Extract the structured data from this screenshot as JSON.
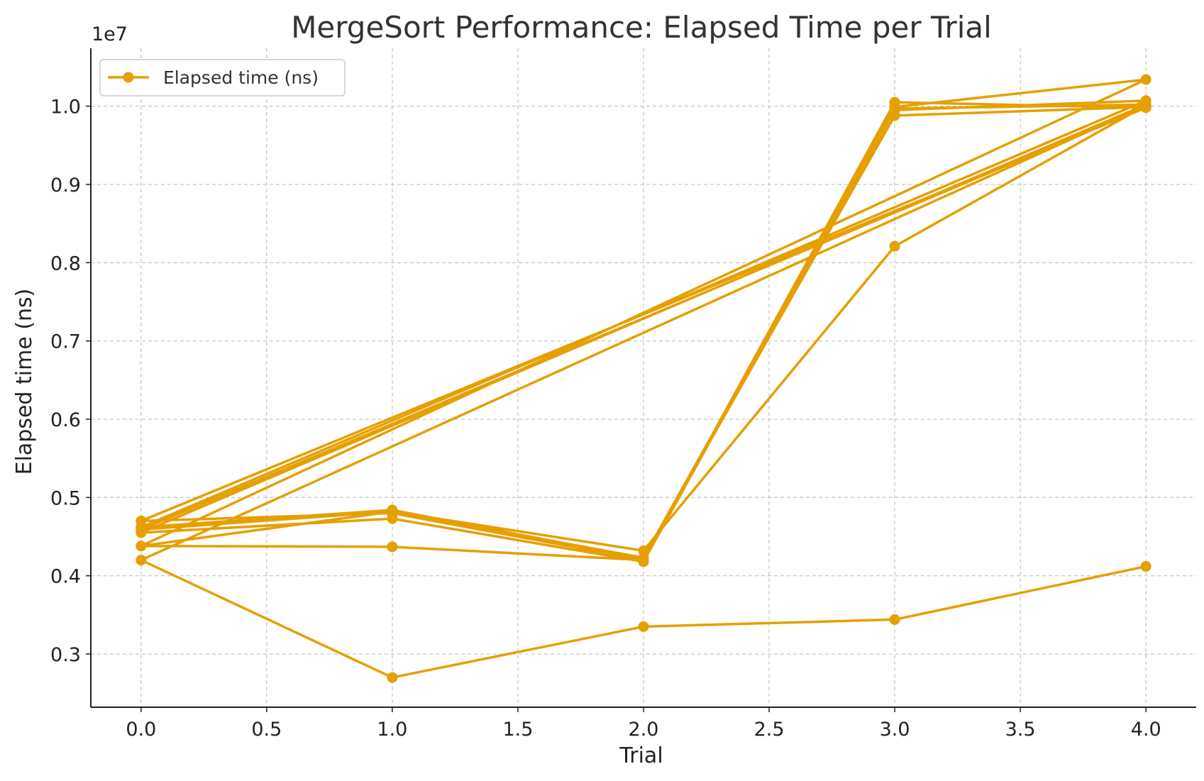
{
  "chart_data": {
    "type": "line",
    "title": "MergeSort Performance: Elapsed Time per Trial",
    "xlabel": "Trial",
    "ylabel": "Elapsed time (ns)",
    "y_offset_label": "1e7",
    "xlim": [
      -0.2,
      4.2
    ],
    "ylim": [
      2.32,
      10.74
    ],
    "xticks": [
      0.0,
      0.5,
      1.0,
      1.5,
      2.0,
      2.5,
      3.0,
      3.5,
      4.0
    ],
    "xtick_labels": [
      "0.0",
      "0.5",
      "1.0",
      "1.5",
      "2.0",
      "2.5",
      "3.0",
      "3.5",
      "4.0"
    ],
    "yticks": [
      3,
      4,
      5,
      6,
      7,
      8,
      9,
      10
    ],
    "ytick_labels": [
      "0.3",
      "0.4",
      "0.5",
      "0.6",
      "0.7",
      "0.8",
      "0.9",
      "1.0"
    ],
    "grid": true,
    "legend": {
      "placement": "top-left",
      "entries": [
        "Elapsed time (ns)"
      ]
    },
    "color": "#E69F00",
    "x": [
      0,
      1,
      2,
      3,
      4,
      0,
      1,
      2,
      3,
      4,
      0,
      1,
      2,
      3,
      4,
      0,
      1,
      2,
      3,
      4,
      0,
      1,
      2,
      3,
      4,
      0,
      1,
      2,
      3,
      4,
      0,
      1,
      2,
      3,
      4
    ],
    "y": [
      4.38,
      4.37,
      4.2,
      10.05,
      9.98,
      4.7,
      4.8,
      4.2,
      9.95,
      10.07,
      4.62,
      4.84,
      4.22,
      9.88,
      9.99,
      4.59,
      4.82,
      4.23,
      9.97,
      10.02,
      4.55,
      4.73,
      4.18,
      9.99,
      10.34,
      4.38,
      4.82,
      4.32,
      8.21,
      10.01,
      4.2,
      2.7,
      3.35,
      3.44,
      4.12
    ]
  }
}
